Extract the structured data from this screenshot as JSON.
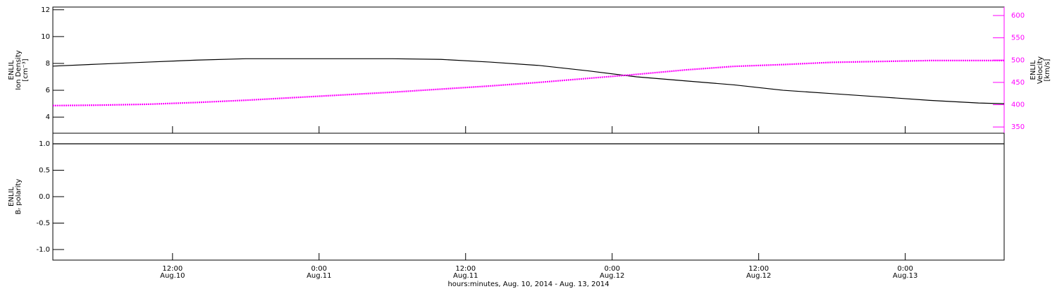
{
  "chart_data": [
    {
      "type": "line",
      "ylabel": [
        "ENLIL",
        "Ion Density",
        "[cm⁻³]"
      ],
      "y2label": [
        "ENLIL",
        "Velocity",
        "[km/s]"
      ],
      "x": [
        2.2,
        6,
        10,
        14,
        18,
        22,
        26,
        30,
        34,
        38,
        42,
        46,
        50,
        54,
        58,
        62,
        66,
        70,
        74,
        78,
        80.1
      ],
      "xlim": [
        2.2,
        80.1
      ],
      "ylim": [
        2.8,
        12.2
      ],
      "yticks": [
        4,
        6,
        8,
        10,
        12
      ],
      "y2lim": [
        336,
        619
      ],
      "y2ticks": [
        350,
        400,
        450,
        500,
        550,
        600
      ],
      "series": [
        {
          "color": "#000000",
          "axis": "y",
          "values": [
            7.8,
            7.95,
            8.1,
            8.25,
            8.35,
            8.35,
            8.35,
            8.35,
            8.3,
            8.1,
            7.85,
            7.45,
            7.0,
            6.7,
            6.4,
            6.0,
            5.75,
            5.5,
            5.25,
            5.05,
            5.0
          ]
        },
        {
          "color": "#ff00ff",
          "axis": "y2",
          "values": [
            398,
            399,
            401,
            405,
            410,
            416,
            422,
            428,
            435,
            442,
            450,
            459,
            468,
            478,
            486,
            490,
            495,
            497,
            499,
            499,
            499
          ]
        }
      ]
    },
    {
      "type": "line",
      "ylabel": [
        "ENLIL",
        "Bᵣ polarity"
      ],
      "xlabel": "hours:minutes, Aug. 10, 2014 - Aug. 13, 2014",
      "x": [
        2.2,
        6,
        10,
        14,
        18,
        22,
        26,
        30,
        34,
        38,
        42,
        46,
        50,
        54,
        58,
        62,
        66,
        70,
        74,
        78,
        80.1
      ],
      "xlim": [
        2.2,
        80.1
      ],
      "xticks": [
        {
          "value": 12,
          "label": [
            "12:00",
            "Aug.10"
          ]
        },
        {
          "value": 24,
          "label": [
            "0:00",
            "Aug.11"
          ]
        },
        {
          "value": 36,
          "label": [
            "12:00",
            "Aug.11"
          ]
        },
        {
          "value": 48,
          "label": [
            "0:00",
            "Aug.12"
          ]
        },
        {
          "value": 60,
          "label": [
            "12:00",
            "Aug.12"
          ]
        },
        {
          "value": 72,
          "label": [
            "0:00",
            "Aug.13"
          ]
        }
      ],
      "ylim": [
        -1.2,
        1.2
      ],
      "yticks": [
        {
          "value": 1,
          "label": "1.0"
        },
        0.5,
        {
          "value": 0,
          "label": "0.0"
        },
        -0.5,
        {
          "value": -1,
          "label": "-1.0"
        }
      ],
      "series": [
        {
          "color": "#000000",
          "axis": "y",
          "values": [
            1,
            1,
            1,
            1,
            1,
            1,
            1,
            1,
            1,
            1,
            1,
            1,
            1,
            1,
            1,
            1,
            1,
            1,
            1,
            1,
            1
          ]
        }
      ]
    }
  ]
}
